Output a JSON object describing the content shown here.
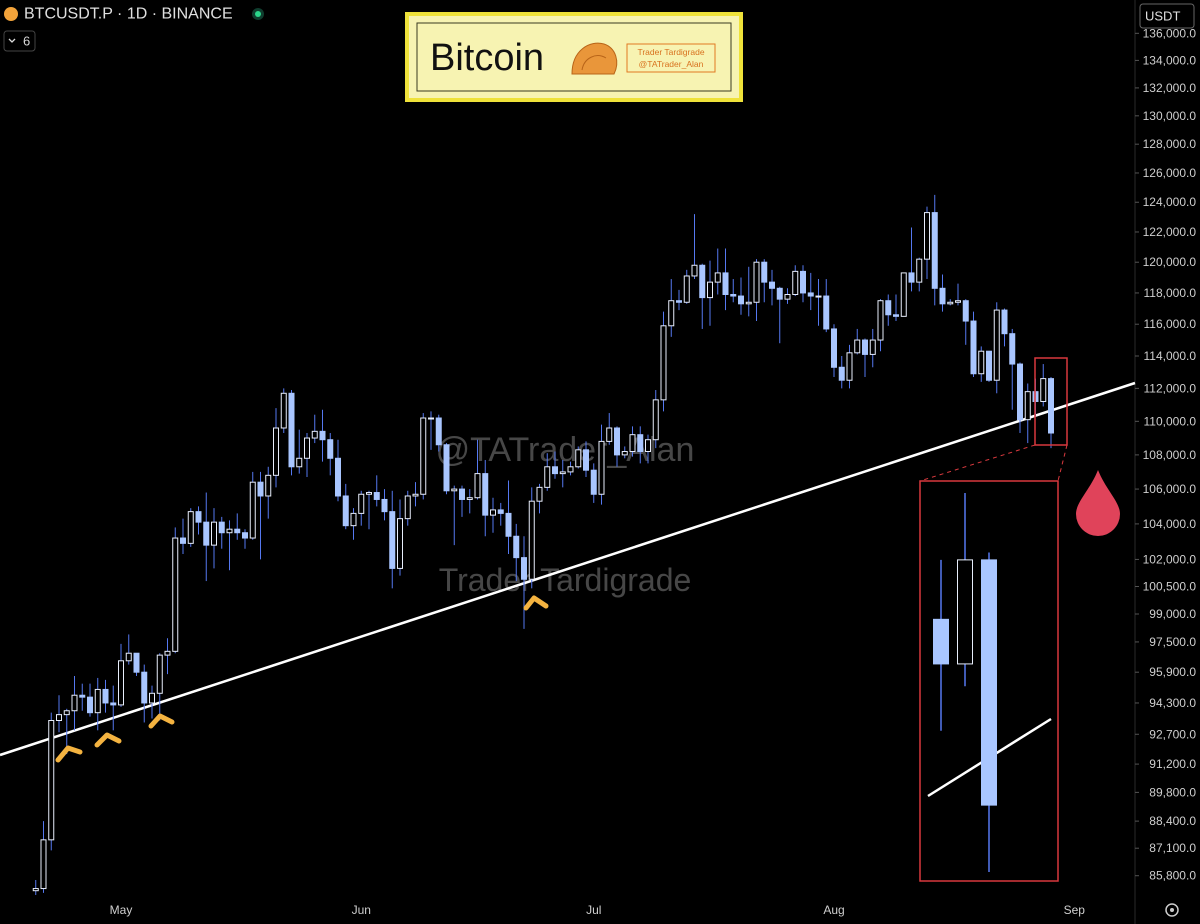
{
  "header": {
    "symbol": "BTCUSDT.P · 1D · BINANCE",
    "indicator_count": 6,
    "currency": "USDT"
  },
  "banner": {
    "brand": "Trader Tardigrade",
    "handle": "@TATrader_Alan"
  },
  "watermarks": [
    "@TATrader_Alan",
    "Trader Tardigrade"
  ],
  "chart_data": {
    "type": "candlestick",
    "title": "Bitcoin",
    "log_scale": true,
    "grid": false,
    "up_color": "#e8eefc",
    "down_color": "#a9c6ff",
    "wick_color": "#5578f0",
    "categories": [
      null,
      null,
      null,
      null,
      null,
      null,
      null,
      null,
      null,
      null,
      null,
      "May",
      null,
      null,
      null,
      null,
      null,
      null,
      null,
      null,
      null,
      null,
      null,
      null,
      null,
      null,
      null,
      null,
      null,
      null,
      null,
      null,
      null,
      null,
      null,
      null,
      null,
      null,
      null,
      null,
      null,
      null,
      "Jun",
      null,
      null,
      null,
      null,
      null,
      null,
      null,
      null,
      null,
      null,
      null,
      null,
      null,
      null,
      null,
      null,
      null,
      null,
      null,
      null,
      null,
      null,
      null,
      null,
      null,
      null,
      null,
      null,
      null,
      "Jul",
      null,
      null,
      null,
      null,
      null,
      null,
      null,
      null,
      null,
      null,
      null,
      null,
      null,
      null,
      null,
      null,
      null,
      null,
      null,
      null,
      null,
      null,
      null,
      null,
      null,
      null,
      null,
      null,
      null,
      null,
      "Aug",
      null,
      null,
      null,
      null,
      null,
      null,
      null,
      null,
      null,
      null,
      null,
      null,
      null,
      null,
      null,
      null,
      null,
      null,
      null,
      null,
      null,
      null,
      null,
      null,
      null,
      null,
      null,
      null,
      null,
      null,
      "Sep"
    ],
    "open": [
      85100,
      85200,
      87500,
      93400,
      93700,
      93900,
      94700,
      94600,
      93800,
      95000,
      94300,
      94200,
      96500,
      96900,
      95900,
      94300,
      94800,
      96800,
      97000,
      103200,
      102900,
      104700,
      104100,
      102800,
      104100,
      103500,
      103700,
      103500,
      103200,
      106400,
      105600,
      106800,
      109600,
      111700,
      107300,
      107800,
      109000,
      109400,
      108900,
      107800,
      105600,
      103900,
      104600,
      105700,
      105800,
      105400,
      104700,
      101500,
      104300,
      105600,
      105700,
      110200,
      110200,
      108600,
      105900,
      106000,
      105400,
      105500,
      106900,
      104500,
      104800,
      104600,
      103300,
      102100,
      100900,
      105300,
      106100,
      107300,
      106900,
      107000,
      107300,
      108300,
      107100,
      105700,
      108800,
      109600,
      108000,
      108200,
      109200,
      108200,
      108900,
      111300,
      115900,
      117500,
      117400,
      119100,
      119800,
      117700,
      118700,
      119300,
      117900,
      117800,
      117300,
      117400,
      120000,
      118700,
      118300,
      117600,
      117900,
      119400,
      118000,
      117800,
      117800,
      115700,
      113300,
      112500,
      114200,
      115000,
      114100,
      115000,
      117500,
      116600,
      116500,
      119300,
      118700,
      120200,
      123300,
      118300,
      117300,
      117400,
      117500,
      116200,
      112900,
      114300,
      112500,
      116900,
      115400,
      113500,
      110100,
      111800,
      111200,
      112600,
      null,
      null,
      null
    ],
    "high": [
      85600,
      88400,
      93800,
      94700,
      94000,
      95700,
      95300,
      95300,
      95600,
      95500,
      95200,
      97400,
      97900,
      96900,
      96300,
      95200,
      96900,
      97700,
      103800,
      104300,
      104900,
      105000,
      105800,
      104900,
      104400,
      104200,
      104600,
      103700,
      107000,
      107000,
      107300,
      110800,
      112000,
      111900,
      109500,
      109300,
      110400,
      110700,
      109300,
      108900,
      106300,
      104900,
      105900,
      105900,
      106800,
      106000,
      105900,
      105400,
      105900,
      106400,
      110500,
      110600,
      110400,
      108700,
      106200,
      106200,
      106000,
      108900,
      107700,
      105500,
      105200,
      106500,
      104000,
      103300,
      106100,
      106300,
      108100,
      108200,
      107700,
      107600,
      108500,
      108800,
      107500,
      109800,
      110500,
      109700,
      108500,
      109700,
      109700,
      109200,
      111900,
      116800,
      118900,
      118200,
      119500,
      123200,
      119900,
      120100,
      120900,
      120900,
      118900,
      119000,
      119700,
      120200,
      120200,
      119500,
      118400,
      118300,
      119800,
      119800,
      119300,
      118900,
      118900,
      116000,
      114000,
      114700,
      115700,
      115100,
      115700,
      117600,
      117900,
      117900,
      119300,
      122300,
      120300,
      123700,
      124500,
      119200,
      117600,
      118600,
      117600,
      116800,
      114600,
      114300,
      117400,
      117000,
      115700,
      113600,
      112300,
      112600,
      113500,
      112700,
      null,
      null,
      null
    ],
    "low": [
      84900,
      85000,
      87000,
      92800,
      91700,
      92900,
      93900,
      93600,
      92900,
      93800,
      92900,
      94100,
      96300,
      95700,
      93300,
      93500,
      93400,
      95800,
      96900,
      102300,
      102700,
      103400,
      100800,
      101500,
      102600,
      101400,
      103100,
      102600,
      103100,
      102000,
      104300,
      106100,
      109300,
      106800,
      106900,
      106700,
      108700,
      107600,
      106800,
      105300,
      103700,
      103100,
      103900,
      103700,
      105000,
      104200,
      100400,
      101100,
      103900,
      105000,
      105400,
      108300,
      108200,
      105700,
      102800,
      104400,
      104600,
      105400,
      103300,
      103500,
      103900,
      102300,
      100800,
      98200,
      100400,
      104600,
      105900,
      106600,
      106100,
      106800,
      107200,
      106700,
      105200,
      105100,
      108600,
      107300,
      107800,
      107900,
      107500,
      107500,
      108400,
      110600,
      115200,
      116900,
      117300,
      118900,
      115700,
      115900,
      117900,
      116900,
      117400,
      116600,
      116500,
      116200,
      117400,
      117200,
      114800,
      117300,
      117800,
      117400,
      116900,
      115900,
      115500,
      112700,
      112000,
      112000,
      114100,
      112700,
      113300,
      114300,
      115900,
      116200,
      116500,
      118100,
      118100,
      118900,
      117200,
      116800,
      117200,
      117200,
      114700,
      112700,
      112400,
      112400,
      111700,
      114600,
      110700,
      109300,
      108700,
      110300,
      110900,
      108400,
      null,
      null,
      null
    ],
    "close": [
      85200,
      87500,
      93400,
      93700,
      93900,
      94700,
      94600,
      93800,
      95000,
      94300,
      94200,
      96500,
      96900,
      95900,
      94300,
      94800,
      96800,
      97000,
      103200,
      102900,
      104700,
      104100,
      102800,
      104100,
      103500,
      103700,
      103500,
      103200,
      106400,
      105600,
      106800,
      109600,
      111700,
      107300,
      107800,
      109000,
      109400,
      108900,
      107800,
      105600,
      103900,
      104600,
      105700,
      105800,
      105400,
      104700,
      101500,
      104300,
      105600,
      105700,
      110200,
      110200,
      108600,
      105900,
      106000,
      105400,
      105500,
      106900,
      104500,
      104800,
      104600,
      103300,
      102100,
      100900,
      105300,
      106100,
      107300,
      106900,
      107000,
      107300,
      108300,
      107100,
      105700,
      108800,
      109600,
      108000,
      108200,
      109200,
      108200,
      108900,
      111300,
      115900,
      117500,
      117400,
      119100,
      119800,
      117700,
      118700,
      119300,
      117900,
      117800,
      117300,
      117400,
      120000,
      118700,
      118300,
      117600,
      117900,
      119400,
      118000,
      117800,
      117800,
      115700,
      113300,
      112500,
      114200,
      115000,
      114100,
      115000,
      117500,
      116600,
      116500,
      119300,
      118700,
      120200,
      123300,
      118300,
      117300,
      117400,
      117500,
      116200,
      112900,
      114300,
      112500,
      116900,
      115400,
      113500,
      110100,
      111800,
      111200,
      112600,
      109300,
      null,
      null,
      null
    ],
    "ylim": [
      84900,
      138500
    ],
    "yticks": [
      {
        "value": 136000,
        "label": "136,000.0"
      },
      {
        "value": 134000,
        "label": "134,000.0"
      },
      {
        "value": 132000,
        "label": "132,000.0"
      },
      {
        "value": 130000,
        "label": "130,000.0"
      },
      {
        "value": 128000,
        "label": "128,000.0"
      },
      {
        "value": 126000,
        "label": "126,000.0"
      },
      {
        "value": 124000,
        "label": "124,000.0"
      },
      {
        "value": 122000,
        "label": "122,000.0"
      },
      {
        "value": 120000,
        "label": "120,000.0"
      },
      {
        "value": 118000,
        "label": "118,000.0"
      },
      {
        "value": 116000,
        "label": "116,000.0"
      },
      {
        "value": 114000,
        "label": "114,000.0"
      },
      {
        "value": 112000,
        "label": "112,000.0"
      },
      {
        "value": 110000,
        "label": "110,000.0"
      },
      {
        "value": 108000,
        "label": "108,000.0"
      },
      {
        "value": 106000,
        "label": "106,000.0"
      },
      {
        "value": 104000,
        "label": "104,000.0"
      },
      {
        "value": 102000,
        "label": "102,000.0"
      },
      {
        "value": 100500,
        "label": "100,500.0"
      },
      {
        "value": 99000,
        "label": "99,000.0"
      },
      {
        "value": 97500,
        "label": "97,500.0"
      },
      {
        "value": 95900,
        "label": "95,900.0"
      },
      {
        "value": 94300,
        "label": "94,300.0"
      },
      {
        "value": 92700,
        "label": "92,700.0"
      },
      {
        "value": 91200,
        "label": "91,200.0"
      },
      {
        "value": 89800,
        "label": "89,800.0"
      },
      {
        "value": 88400,
        "label": "88,400.0"
      },
      {
        "value": 87100,
        "label": "87,100.0"
      },
      {
        "value": 85800,
        "label": "85,800.0"
      }
    ]
  }
}
